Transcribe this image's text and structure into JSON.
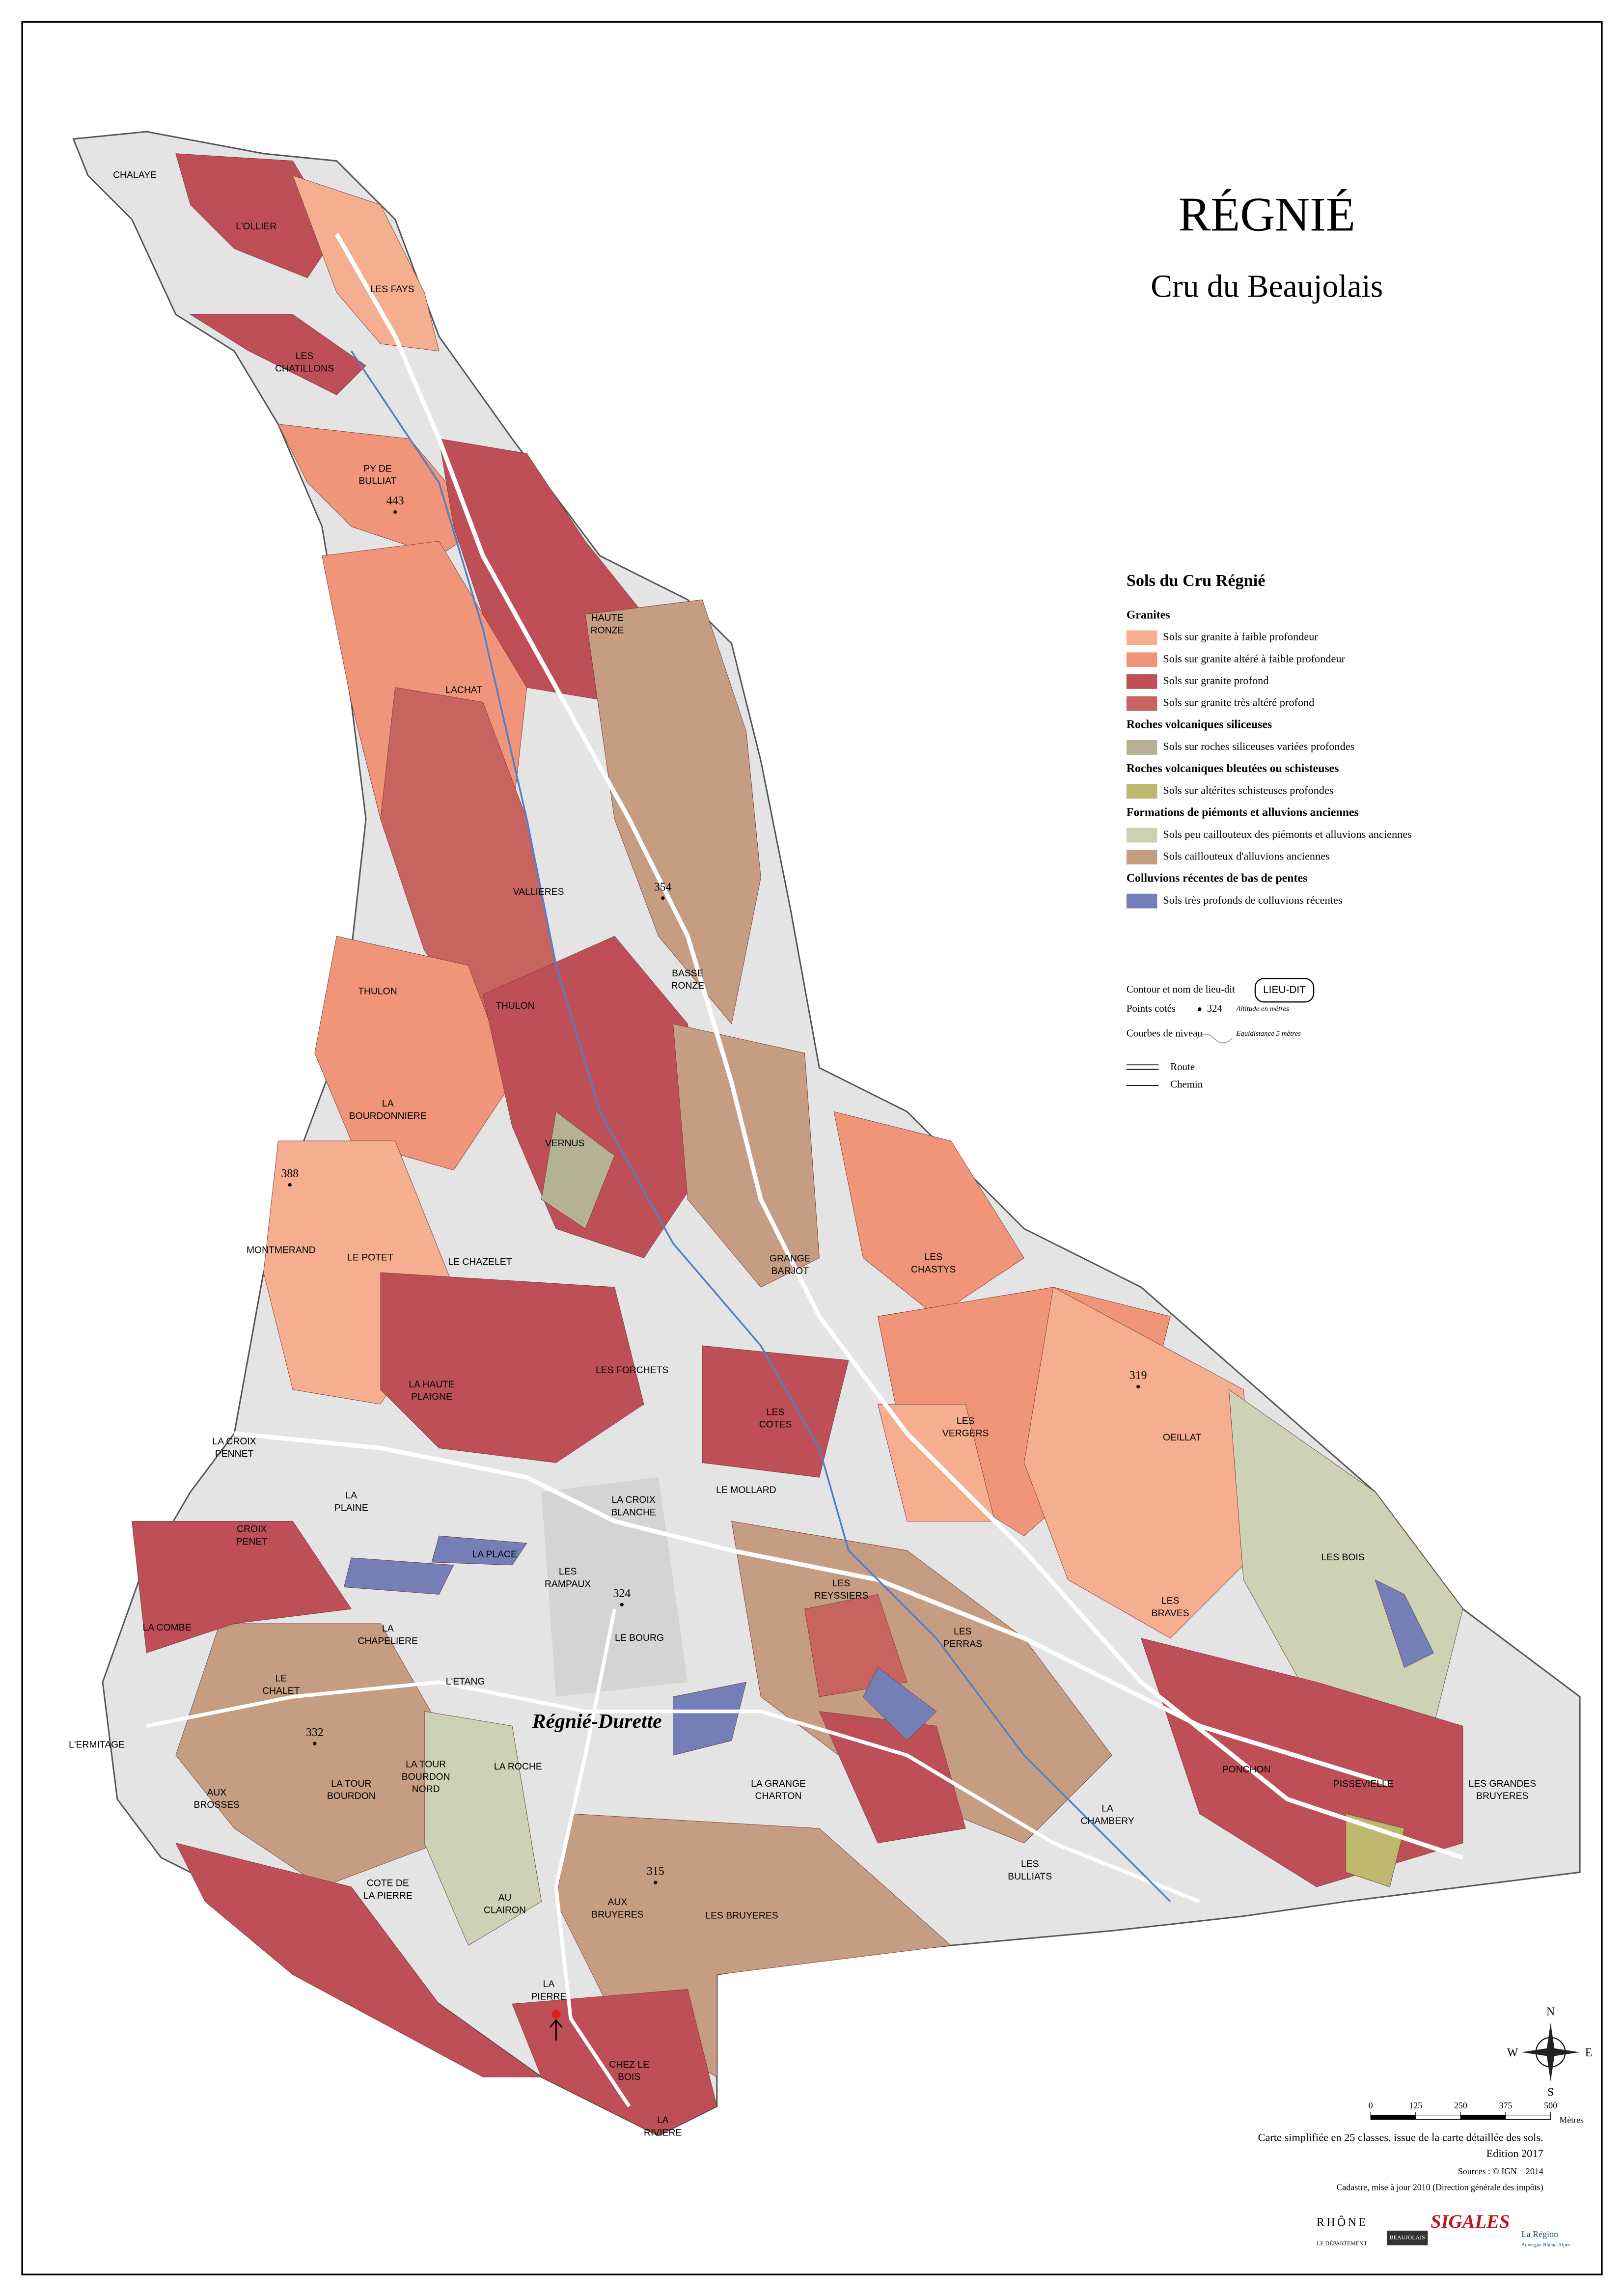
{
  "header": {
    "title": "RÉGNIÉ",
    "subtitle": "Cru du Beaujolais"
  },
  "town": "Régnié-Durette",
  "legend": {
    "title": "Sols du Cru Régnié",
    "groups": [
      {
        "name": "Granites",
        "items": [
          {
            "label": "Sols sur granite à faible profondeur",
            "color": "#f6ae90"
          },
          {
            "label": "Sols sur granite altéré à faible profondeur",
            "color": "#f0957a"
          },
          {
            "label": "Sols sur granite profond",
            "color": "#bf4f57"
          },
          {
            "label": "Sols sur granite très altéré profond",
            "color": "#c8645f"
          }
        ]
      },
      {
        "name": "Roches volcaniques siliceuses",
        "items": [
          {
            "label": "Sols sur roches siliceuses variées profondes",
            "color": "#b5b293"
          }
        ]
      },
      {
        "name": "Roches volcaniques bleutées ou schisteuses",
        "items": [
          {
            "label": "Sols sur altérites schisteuses profondes",
            "color": "#bdb86e"
          }
        ]
      },
      {
        "name": "Formations de piémonts et alluvions anciennes",
        "items": [
          {
            "label": "Sols peu caillouteux des piémonts et alluvions anciennes",
            "color": "#cdd2b4"
          },
          {
            "label": "Sols caillouteux d'alluvions anciennes",
            "color": "#c59d82"
          }
        ]
      },
      {
        "name": "Colluvions récentes de bas de pentes",
        "items": [
          {
            "label": "Sols très profonds de colluvions récentes",
            "color": "#737fb6"
          }
        ]
      }
    ],
    "symbols": {
      "lieu_dit": {
        "label": "Contour et nom de lieu-dit",
        "sample": "LIEU-DIT"
      },
      "spot": {
        "label": "Points cotés",
        "sample": 324,
        "note": "Altitude en mètres"
      },
      "contours": {
        "label": "Courbes de niveau",
        "note": "Equidistance 5 mètres"
      },
      "route": "Route",
      "chemin": "Chemin"
    }
  },
  "places": [
    {
      "lines": [
        "CHALAYE"
      ]
    },
    {
      "lines": [
        "L'OLLIER"
      ]
    },
    {
      "lines": [
        "LES FAYS"
      ]
    },
    {
      "lines": [
        "LES",
        "CHATILLONS"
      ]
    },
    {
      "lines": [
        "PY DE",
        "BULLIAT"
      ]
    },
    {
      "lines": [
        "HAUTE",
        "RONZE"
      ]
    },
    {
      "lines": [
        "LACHAT"
      ]
    },
    {
      "lines": [
        "VALLIERES"
      ]
    },
    {
      "lines": [
        "BASSE",
        "RONZE"
      ]
    },
    {
      "lines": [
        "THULON"
      ]
    },
    {
      "lines": [
        "THULON"
      ]
    },
    {
      "lines": [
        "LA",
        "BOURDONNIERE"
      ]
    },
    {
      "lines": [
        "VERNUS"
      ]
    },
    {
      "lines": [
        "MONTMERAND"
      ]
    },
    {
      "lines": [
        "LE POTET"
      ]
    },
    {
      "lines": [
        "LE CHAZELET"
      ]
    },
    {
      "lines": [
        "GRANGE",
        "BARJOT"
      ]
    },
    {
      "lines": [
        "LES",
        "CHASTYS"
      ]
    },
    {
      "lines": [
        "LES FORCHETS"
      ]
    },
    {
      "lines": [
        "LA HAUTE",
        "PLAIGNE"
      ]
    },
    {
      "lines": [
        "LES",
        "COTES"
      ]
    },
    {
      "lines": [
        "LES",
        "VERGERS"
      ]
    },
    {
      "lines": [
        "OEILLAT"
      ]
    },
    {
      "lines": [
        "LA CROIX",
        "PENNET"
      ]
    },
    {
      "lines": [
        "LA CROIX",
        "BLANCHE"
      ]
    },
    {
      "lines": [
        "LE MOLLARD"
      ]
    },
    {
      "lines": [
        "LA",
        "PLAINE"
      ]
    },
    {
      "lines": [
        "CROIX",
        "PENET"
      ]
    },
    {
      "lines": [
        "LA PLACE"
      ]
    },
    {
      "lines": [
        "LES",
        "RAMPAUX"
      ]
    },
    {
      "lines": [
        "LES BOIS"
      ]
    },
    {
      "lines": [
        "LES",
        "REYSSIERS"
      ]
    },
    {
      "lines": [
        "LA COMBE"
      ]
    },
    {
      "lines": [
        "LA",
        "CHAPELIERE"
      ]
    },
    {
      "lines": [
        "LE BOURG"
      ]
    },
    {
      "lines": [
        "LES",
        "PERRAS"
      ]
    },
    {
      "lines": [
        "LES",
        "BRAVES"
      ]
    },
    {
      "lines": [
        "LE",
        "CHALET"
      ]
    },
    {
      "lines": [
        "L'ETANG"
      ]
    },
    {
      "lines": [
        "L'ERMITAGE"
      ]
    },
    {
      "lines": [
        "LA TOUR",
        "BOURDON",
        "NORD"
      ]
    },
    {
      "lines": [
        "LA ROCHE"
      ]
    },
    {
      "lines": [
        "LA TOUR",
        "BOURDON"
      ]
    },
    {
      "lines": [
        "AUX",
        "BROSSES"
      ]
    },
    {
      "lines": [
        "PONCHON"
      ]
    },
    {
      "lines": [
        "PISSEVIELLE"
      ]
    },
    {
      "lines": [
        "LES GRANDES",
        "BRUYERES"
      ]
    },
    {
      "lines": [
        "LA GRANGE",
        "CHARTON"
      ]
    },
    {
      "lines": [
        "LA",
        "CHAMBERY"
      ]
    },
    {
      "lines": [
        "LES",
        "BULLIATS"
      ]
    },
    {
      "lines": [
        "COTE DE",
        "LA PIERRE"
      ]
    },
    {
      "lines": [
        "AU",
        "CLAIRON"
      ]
    },
    {
      "lines": [
        "AUX",
        "BRUYERES"
      ]
    },
    {
      "lines": [
        "LES BRUYERES"
      ]
    },
    {
      "lines": [
        "LA",
        "PIERRE"
      ]
    },
    {
      "lines": [
        "CHEZ LE",
        "BOIS"
      ]
    },
    {
      "lines": [
        "LA",
        "RIVIERE"
      ]
    }
  ],
  "spot_heights": [
    443,
    354,
    388,
    319,
    324,
    332,
    315
  ],
  "compass": {
    "north": "N",
    "south": "S",
    "east": "E",
    "west": "W"
  },
  "scale": {
    "ticks": [
      0,
      125,
      250,
      375,
      500
    ],
    "unit": "Mètres"
  },
  "credits": [
    "Carte simplifiée en 25 classes, issue de la carte détaillée des sols.",
    "Edition 2017",
    "Sources : © IGN – 2014",
    "Cadastre, mise à jour 2010 (Direction générale des impôts)"
  ],
  "logos": [
    "RHÔNE",
    "LE DÉPARTEMENT",
    "BEAUJOLAIS",
    "SIGALES",
    "La Région",
    "Auvergne-Rhône-Alpes"
  ]
}
